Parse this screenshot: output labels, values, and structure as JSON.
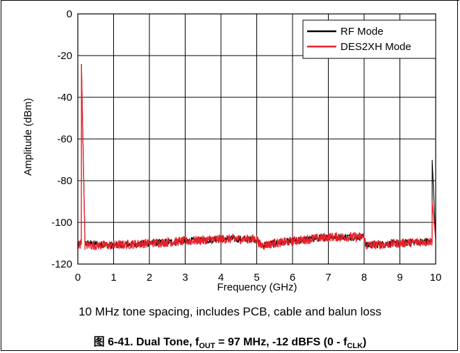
{
  "chart_data": {
    "type": "line",
    "xlabel": "Frequency (GHz)",
    "ylabel": "Amplitude (dBm)",
    "xlim": [
      0,
      10
    ],
    "ylim": [
      -120,
      0
    ],
    "x_ticks": [
      "0",
      "1",
      "2",
      "3",
      "4",
      "5",
      "6",
      "7",
      "8",
      "9",
      "10"
    ],
    "y_ticks": [
      "0",
      "-20",
      "-40",
      "-60",
      "-80",
      "-100",
      "-120"
    ],
    "grid": true,
    "legend_position": "top-right",
    "series": [
      {
        "name": "RF Mode",
        "color": "#000000",
        "x": [
          0,
          0.097,
          0.1,
          0.2,
          1,
          2,
          3,
          4,
          5,
          5.1,
          6,
          7,
          8,
          8.05,
          9,
          9.9,
          9.903,
          10
        ],
        "y": [
          -111,
          -110,
          -24,
          -110,
          -111,
          -110,
          -109,
          -108,
          -108,
          -111,
          -109,
          -107,
          -107,
          -111,
          -110,
          -109,
          -70,
          -108
        ]
      },
      {
        "name": "DES2XH Mode",
        "color": "#e8202a",
        "x": [
          0,
          0.097,
          0.1,
          0.2,
          1,
          2,
          3,
          4,
          5,
          5.1,
          6,
          7,
          8,
          8.05,
          9,
          9.9,
          9.903,
          10
        ],
        "y": [
          -111,
          -110,
          -24,
          -111,
          -111,
          -110,
          -109,
          -108,
          -108,
          -111,
          -109,
          -107,
          -107,
          -111,
          -110,
          -109,
          -90,
          -108
        ]
      }
    ]
  },
  "note": "10 MHz tone spacing, includes PCB, cable and balun loss",
  "caption": {
    "prefix": "图 6-41. Dual Tone, f",
    "sub1": "OUT",
    "middle": " = 97 MHz, -12 dBFS (0 - f",
    "sub2": "CLK",
    "suffix": ")"
  }
}
